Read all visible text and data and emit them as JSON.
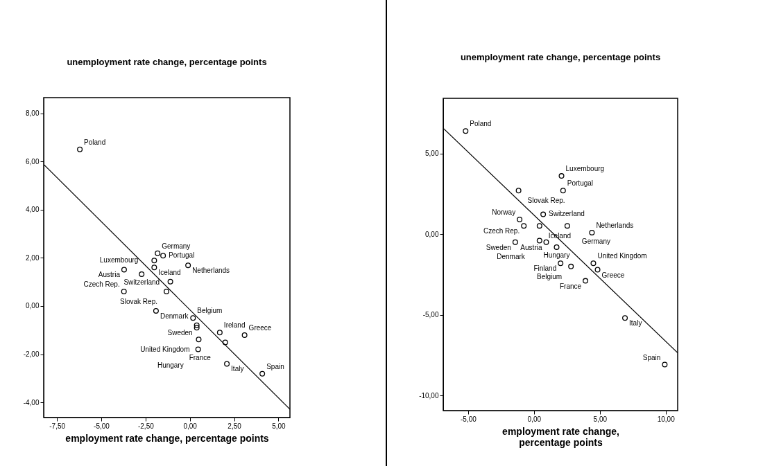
{
  "chart_data": [
    {
      "type": "scatter",
      "title": "unemployment rate change, percentage points",
      "xlabel": "employment rate change, percentage points",
      "marker": "circle",
      "xlim": [
        -8.25,
        5.65
      ],
      "ylim": [
        -4.63,
        8.65
      ],
      "xticks": [
        {
          "value": -7.5,
          "label": "-7,50"
        },
        {
          "value": -5,
          "label": "-5,00"
        },
        {
          "value": -2.5,
          "label": "-2,50"
        },
        {
          "value": 0,
          "label": "0,00"
        },
        {
          "value": 2.5,
          "label": "2,50"
        },
        {
          "value": 5,
          "label": "5,00"
        }
      ],
      "yticks": [
        {
          "value": -4,
          "label": "-4,00"
        },
        {
          "value": -2,
          "label": "-2,00"
        },
        {
          "value": 0,
          "label": "0,00"
        },
        {
          "value": 2,
          "label": "2,00"
        },
        {
          "value": 4,
          "label": "4,00"
        },
        {
          "value": 6,
          "label": "6,00"
        },
        {
          "value": 8,
          "label": "8,00"
        }
      ],
      "series": [
        {
          "color": "#000000",
          "x": [
            -6.21,
            -1.82,
            -1.51,
            -2.01,
            -2.01,
            -0.1,
            -3.71,
            -2.72,
            -1.1,
            -3.72,
            -1.32,
            -1.91,
            0.18,
            0.39,
            0.39,
            0.5,
            1.69,
            2.0,
            3.09,
            2.09,
            4.09,
            0.47
          ],
          "values": [
            6.5,
            2.19,
            2.09,
            1.89,
            1.6,
            1.69,
            1.51,
            1.32,
            1.01,
            0.6,
            0.6,
            -0.2,
            -0.5,
            -0.8,
            -0.9,
            -1.39,
            -1.1,
            -1.51,
            -1.21,
            -2.4,
            -2.81,
            -1.8
          ]
        },
        {
          "type": "line",
          "marker": "none",
          "color": "#000000",
          "x": [
            -8.25,
            5.65
          ],
          "values": [
            5.88,
            -4.29
          ]
        }
      ],
      "annotations": [
        {
          "text": "Poland",
          "x": -6.21,
          "y": 6.5
        },
        {
          "text": "Germany",
          "x": -1.82,
          "y": 2.19
        },
        {
          "text": "Portugal",
          "x": -1.51,
          "y": 2.09
        },
        {
          "text": "Luxembourg",
          "x": -2.01,
          "y": 1.89
        },
        {
          "text": "Iceland",
          "x": -2.01,
          "y": 1.6
        },
        {
          "text": "Netherlands",
          "x": -0.1,
          "y": 1.69
        },
        {
          "text": "Austria",
          "x": -3.71,
          "y": 1.51
        },
        {
          "text": "Switzerland",
          "x": -2.72,
          "y": 1.32
        },
        {
          "text": "Czech Rep.",
          "x": -3.72,
          "y": 0.6
        },
        {
          "text": "Slovak Rep.",
          "x": -1.32,
          "y": 0.6
        },
        {
          "text": "Denmark",
          "x": -1.91,
          "y": -0.2
        },
        {
          "text": "Belgium",
          "x": 0.18,
          "y": -0.5
        },
        {
          "text": "Sweden",
          "x": 0.39,
          "y": -0.9
        },
        {
          "text": "United Kingdom",
          "x": 0.5,
          "y": -1.39
        },
        {
          "text": "Ireland",
          "x": 1.69,
          "y": -1.1
        },
        {
          "text": "France",
          "x": 2.0,
          "y": -1.51
        },
        {
          "text": "Greece",
          "x": 3.09,
          "y": -1.21
        },
        {
          "text": "Italy",
          "x": 2.09,
          "y": -2.4
        },
        {
          "text": "Spain",
          "x": 4.09,
          "y": -2.81
        },
        {
          "text": "Hungary",
          "x": 0.47,
          "y": -1.8
        }
      ]
    },
    {
      "type": "scatter",
      "title": "unemployment rate change, percentage points",
      "xlabel": "employment rate change, percentage points",
      "marker": "circle",
      "xlim": [
        -6.89,
        10.91
      ],
      "ylim": [
        -10.93,
        8.42
      ],
      "xticks": [
        {
          "value": -5,
          "label": "-5,00"
        },
        {
          "value": 0,
          "label": "0,00"
        },
        {
          "value": 5,
          "label": "5,00"
        },
        {
          "value": 10,
          "label": "10,00"
        }
      ],
      "yticks": [
        {
          "value": -10,
          "label": "-10,00"
        },
        {
          "value": -5,
          "label": "-5,00"
        },
        {
          "value": 0,
          "label": "0,00"
        },
        {
          "value": 5,
          "label": "5,00"
        }
      ],
      "series": [
        {
          "color": "#000000",
          "x": [
            -5.19,
            2.09,
            2.21,
            -1.17,
            -1.09,
            0.7,
            -0.77,
            0.42,
            2.53,
            4.4,
            -1.42,
            0.42,
            0.93,
            1.72,
            2.02,
            2.81,
            4.51,
            4.83,
            3.91,
            6.91,
            9.93
          ],
          "values": [
            6.39,
            3.61,
            2.7,
            2.7,
            0.91,
            1.23,
            0.52,
            0.52,
            0.52,
            0.1,
            -0.49,
            -0.4,
            -0.49,
            -0.8,
            -1.8,
            -2.0,
            -1.8,
            -2.2,
            -2.89,
            -5.19,
            -8.08
          ]
        },
        {
          "type": "line",
          "marker": "none",
          "color": "#000000",
          "x": [
            -6.89,
            10.91
          ],
          "values": [
            6.57,
            -7.35
          ]
        }
      ],
      "annotations": [
        {
          "text": "Poland",
          "x": -5.19,
          "y": 6.39
        },
        {
          "text": "Luxembourg",
          "x": 2.09,
          "y": 3.61
        },
        {
          "text": "Portugal",
          "x": 2.21,
          "y": 2.7
        },
        {
          "text": "Slovak Rep.",
          "x": -1.17,
          "y": 2.7
        },
        {
          "text": "Norway",
          "x": -1.09,
          "y": 0.91
        },
        {
          "text": "Switzerland",
          "x": 0.7,
          "y": 1.23
        },
        {
          "text": "Czech Rep.",
          "x": -0.77,
          "y": 0.52
        },
        {
          "text": "Iceland",
          "x": 0.42,
          "y": 0.52
        },
        {
          "text": "Germany",
          "x": 2.53,
          "y": 0.52
        },
        {
          "text": "Netherlands",
          "x": 4.4,
          "y": 0.1
        },
        {
          "text": "Sweden",
          "x": -1.42,
          "y": -0.49
        },
        {
          "text": "Denmark",
          "x": 0.42,
          "y": -0.4
        },
        {
          "text": "Austria",
          "x": 0.93,
          "y": -0.49
        },
        {
          "text": "Hungary",
          "x": 1.72,
          "y": -0.8
        },
        {
          "text": "Finland",
          "x": 2.02,
          "y": -1.8
        },
        {
          "text": "Belgium",
          "x": 2.81,
          "y": -2.0
        },
        {
          "text": "United Kingdom",
          "x": 4.51,
          "y": -1.8
        },
        {
          "text": "Greece",
          "x": 4.83,
          "y": -2.2
        },
        {
          "text": "France",
          "x": 3.91,
          "y": -2.89
        },
        {
          "text": "Italy",
          "x": 6.91,
          "y": -5.19
        },
        {
          "text": "Spain",
          "x": 9.93,
          "y": -8.08
        }
      ]
    }
  ]
}
